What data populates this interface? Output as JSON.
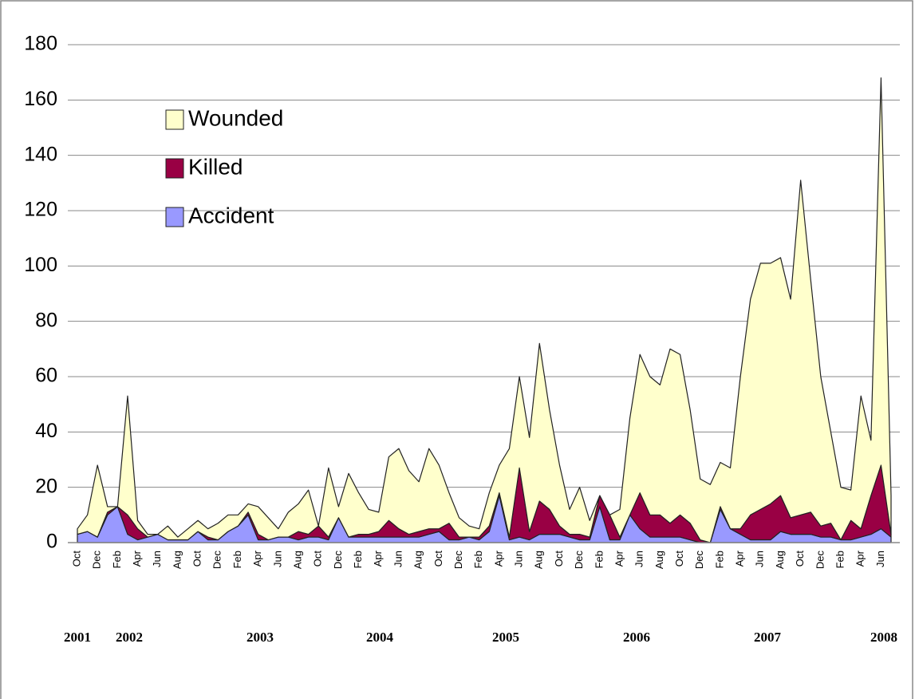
{
  "chart_data": {
    "type": "stacked_area",
    "categories": [
      "Oct",
      null,
      "Dec",
      null,
      "Feb",
      null,
      "Apr",
      null,
      "Jun",
      null,
      "Aug",
      null,
      "Oct",
      null,
      "Dec",
      null,
      "Feb",
      null,
      "Apr",
      null,
      "Jun",
      null,
      "Aug",
      null,
      "Oct",
      null,
      "Dec",
      null,
      "Feb",
      null,
      "Apr",
      null,
      "Jun",
      null,
      "Aug",
      null,
      "Oct",
      null,
      "Dec",
      null,
      "Feb",
      null,
      "Apr",
      null,
      "Jun",
      null,
      "Aug",
      null,
      "Oct",
      null,
      "Dec",
      null,
      "Feb",
      null,
      "Apr",
      null,
      "Jun",
      null,
      "Aug",
      null,
      "Oct",
      null,
      "Dec",
      null,
      "Feb",
      null,
      "Apr",
      null,
      "Jun",
      null,
      "Aug",
      null,
      "Oct",
      null,
      "Dec",
      null,
      "Feb",
      null,
      "Apr",
      null,
      "Jun",
      null
    ],
    "year_labels": [
      "2001",
      "2002",
      "2003",
      "2004",
      "2005",
      "2006",
      "2007",
      "2008"
    ],
    "series": [
      {
        "name": "Accident",
        "color": "#9999ff",
        "values": [
          3,
          4,
          2,
          10,
          13,
          3,
          1,
          2,
          3,
          1,
          1,
          1,
          4,
          1,
          1,
          4,
          6,
          10,
          1,
          1,
          2,
          2,
          1,
          2,
          2,
          1,
          9,
          2,
          2,
          2,
          2,
          2,
          2,
          2,
          2,
          3,
          4,
          1,
          1,
          2,
          1,
          4,
          17,
          1,
          2,
          1,
          3,
          3,
          3,
          2,
          1,
          1,
          13,
          1,
          1,
          10,
          5,
          2,
          2,
          2,
          2,
          1,
          0,
          0,
          12,
          5,
          3,
          1,
          1,
          1,
          4,
          3,
          3,
          3,
          2,
          2,
          1,
          1,
          2,
          3,
          5,
          2
        ]
      },
      {
        "name": "Killed",
        "color": "#990044",
        "values": [
          0,
          0,
          0,
          1,
          0,
          7,
          4,
          0,
          0,
          0,
          0,
          0,
          0,
          1,
          0,
          0,
          0,
          1,
          2,
          0,
          0,
          0,
          3,
          1,
          4,
          1,
          0,
          0,
          1,
          1,
          2,
          6,
          3,
          1,
          2,
          2,
          1,
          6,
          1,
          0,
          1,
          2,
          1,
          1,
          25,
          3,
          12,
          9,
          3,
          1,
          2,
          1,
          4,
          9,
          1,
          0,
          13,
          8,
          8,
          5,
          8,
          6,
          1,
          0,
          1,
          0,
          2,
          9,
          11,
          13,
          13,
          6,
          7,
          8,
          4,
          5,
          0,
          7,
          3,
          14,
          23,
          1
        ]
      },
      {
        "name": "Wounded",
        "color": "#ffffcc",
        "values": [
          2,
          6,
          26,
          2,
          0,
          43,
          3,
          1,
          0,
          5,
          1,
          4,
          4,
          3,
          6,
          6,
          4,
          3,
          10,
          8,
          3,
          9,
          10,
          16,
          0,
          25,
          4,
          23,
          15,
          9,
          7,
          23,
          29,
          23,
          18,
          29,
          23,
          11,
          7,
          4,
          3,
          12,
          10,
          32,
          33,
          34,
          57,
          36,
          22,
          9,
          17,
          6,
          0,
          0,
          10,
          35,
          50,
          50,
          47,
          63,
          58,
          41,
          22,
          21,
          16,
          22,
          55,
          78,
          89,
          87,
          86,
          79,
          121,
          84,
          54,
          33,
          19,
          11,
          48,
          20,
          140,
          14
        ]
      }
    ],
    "ylim": [
      0,
      180
    ],
    "yticks": [
      0,
      20,
      40,
      60,
      80,
      100,
      120,
      140,
      160,
      180
    ],
    "grid": true
  }
}
